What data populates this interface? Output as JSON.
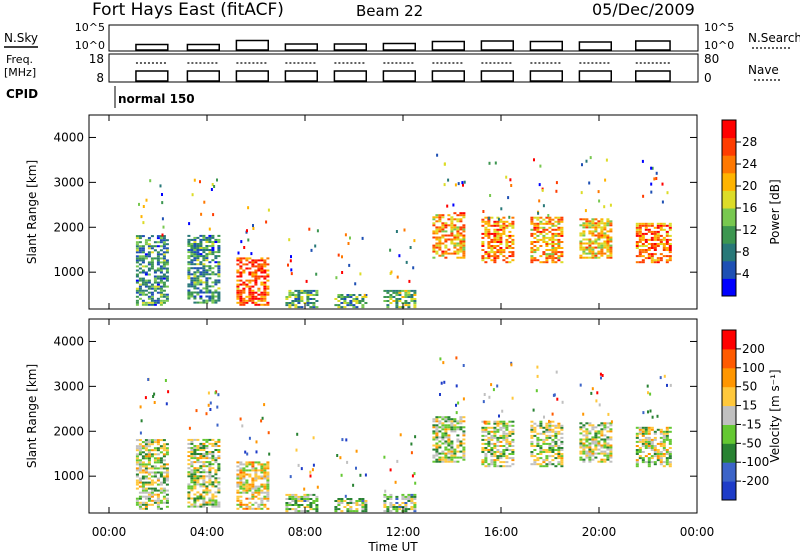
{
  "header": {
    "station": "Fort Hays East (fitACF)",
    "beam": "Beam 22",
    "date": "05/Dec/2009"
  },
  "nsky_panel": {
    "label": "N.Sky",
    "right_label": "N.Search",
    "ticks_left": [
      "10^5",
      "10^0"
    ],
    "ticks_right": [
      "10^5",
      "10^0"
    ]
  },
  "freq_panel": {
    "label_line1": "Freq.",
    "label_line2": "[MHz]",
    "right_label": "Nave",
    "ticks_left": [
      "18",
      "8"
    ],
    "ticks_right": [
      "80",
      "0"
    ]
  },
  "cpid": {
    "label": "CPID",
    "mode_label": "normal 150"
  },
  "power_panel": {
    "ylabel": "Slant Range [km]",
    "yticks": [
      "4000",
      "3000",
      "2000",
      "1000"
    ],
    "colorbar_label": "Power [dB]",
    "colorbar_ticks": [
      "28",
      "24",
      "20",
      "16",
      "12",
      "8",
      "4"
    ],
    "colors": [
      "#0000ff",
      "#1e50b4",
      "#287878",
      "#3c9650",
      "#78c850",
      "#dcdc28",
      "#ffb400",
      "#ff7800",
      "#ff3c00",
      "#ff0000"
    ]
  },
  "velocity_panel": {
    "ylabel": "Slant Range [km]",
    "yticks": [
      "4000",
      "3000",
      "2000",
      "1000"
    ],
    "colorbar_label": "Velocity [m s⁻¹]",
    "colorbar_ticks": [
      "200",
      "100",
      "50",
      "15",
      "-15",
      "-50",
      "-100",
      "-200"
    ],
    "colors": [
      "#1e3cc8",
      "#3c64c8",
      "#288232",
      "#64c832",
      "#c0c0c0",
      "#ffc83c",
      "#ff9600",
      "#ff5a00",
      "#ff0000"
    ]
  },
  "xaxis": {
    "label": "Time UT",
    "ticks": [
      "00:00",
      "04:00",
      "08:00",
      "12:00",
      "16:00",
      "20:00",
      "00:00"
    ]
  },
  "chart_data": {
    "type": "heatmap",
    "x_unit": "hours UT",
    "xlim": [
      0,
      24
    ],
    "ylim": [
      180,
      4500
    ],
    "segments": [
      {
        "start": 1.1,
        "end": 2.4,
        "range": [
          250,
          1800
        ],
        "power": 10,
        "velocity": -15
      },
      {
        "start": 3.2,
        "end": 4.5,
        "range": [
          300,
          1800
        ],
        "power": 10,
        "velocity": -15
      },
      {
        "start": 5.2,
        "end": 6.5,
        "range": [
          250,
          1300
        ],
        "power": 26,
        "velocity": 40
      },
      {
        "start": 7.2,
        "end": 8.5,
        "range": [
          200,
          600
        ],
        "power": 12,
        "velocity": -30
      },
      {
        "start": 9.2,
        "end": 10.5,
        "range": [
          200,
          500
        ],
        "power": 12,
        "velocity": -30
      },
      {
        "start": 11.2,
        "end": 12.5,
        "range": [
          200,
          600
        ],
        "power": 14,
        "velocity": -40
      },
      {
        "start": 13.2,
        "end": 14.5,
        "range": [
          1300,
          2300
        ],
        "power": 22,
        "velocity": -10
      },
      {
        "start": 15.2,
        "end": 16.5,
        "range": [
          1200,
          2200
        ],
        "power": 24,
        "velocity": -10
      },
      {
        "start": 17.2,
        "end": 18.5,
        "range": [
          1200,
          2200
        ],
        "power": 22,
        "velocity": -10
      },
      {
        "start": 19.2,
        "end": 20.5,
        "range": [
          1300,
          2200
        ],
        "power": 20,
        "velocity": -10
      },
      {
        "start": 21.5,
        "end": 22.9,
        "range": [
          1200,
          2100
        ],
        "power": 24,
        "velocity": -10
      }
    ]
  }
}
